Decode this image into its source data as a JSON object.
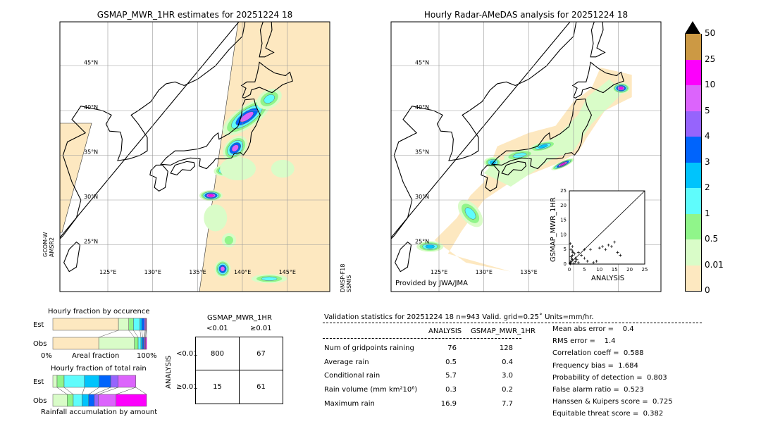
{
  "left_map": {
    "title": "GSMAP_MWR_1HR estimates for 20251224 18",
    "left_sensor": "GCOM-W\nAMSR2",
    "right_sensor": "DMSP-F18\nSSMIS"
  },
  "right_map": {
    "title": "Hourly Radar-AMeDAS analysis for 20251224 18",
    "credit": "Provided by JWA/JMA"
  },
  "lat_labels": [
    "45°N",
    "40°N",
    "35°N",
    "30°N",
    "25°N"
  ],
  "lon_labels": [
    "125°E",
    "130°E",
    "135°E",
    "140°E",
    "145°E"
  ],
  "colorbar": {
    "labels": [
      "50",
      "25",
      "10",
      "5",
      "4",
      "3",
      "2",
      "1",
      "0.5",
      "0.01",
      "0"
    ],
    "colors": [
      "#fde8c0",
      "#d9fcc8",
      "#90f58a",
      "#5ffcfc",
      "#00c4fc",
      "#0064fc",
      "#9664fc",
      "#dc64fc",
      "#fc00fc",
      "#cc9944"
    ],
    "over_color": "#000000"
  },
  "scatter": {
    "xlabel": "ANALYSIS",
    "ylabel": "GSMAP_MWR_1HR",
    "ticks": [
      "0",
      "5",
      "10",
      "15",
      "20",
      "25"
    ],
    "range": [
      0,
      25
    ],
    "points": [
      [
        0.3,
        0.5
      ],
      [
        0.5,
        1
      ],
      [
        0.8,
        2
      ],
      [
        1,
        3
      ],
      [
        1.2,
        4
      ],
      [
        0.5,
        5
      ],
      [
        1,
        6
      ],
      [
        2,
        2
      ],
      [
        2.5,
        1.5
      ],
      [
        3,
        4
      ],
      [
        4,
        3
      ],
      [
        5,
        2
      ],
      [
        5,
        5
      ],
      [
        6,
        1
      ],
      [
        7,
        5
      ],
      [
        8,
        0.5
      ],
      [
        9,
        1
      ],
      [
        10,
        5.5
      ],
      [
        11,
        6
      ],
      [
        12,
        5
      ],
      [
        13,
        6.5
      ],
      [
        14,
        6
      ],
      [
        15,
        7.5
      ],
      [
        16,
        4
      ],
      [
        16.9,
        3
      ],
      [
        0.2,
        0.2
      ],
      [
        0.4,
        0.1
      ],
      [
        1.5,
        0.3
      ],
      [
        2,
        0.8
      ],
      [
        3,
        0.5
      ],
      [
        1,
        1.5
      ],
      [
        0.6,
        2.5
      ],
      [
        1.8,
        3.5
      ],
      [
        0.3,
        7
      ],
      [
        1,
        4.5
      ]
    ]
  },
  "occurrence": {
    "title": "Hourly fraction by occurence",
    "est_label": "Est",
    "obs_label": "Obs",
    "xlabel": "Areal fraction",
    "x0": "0%",
    "x1": "100%",
    "est": [
      0.7,
      0.11,
      0.05,
      0.07,
      0.02,
      0.025,
      0.012,
      0.008,
      0.005
    ],
    "obs": [
      0.49,
      0.38,
      0.04,
      0.03,
      0.018,
      0.013,
      0.01,
      0.008,
      0.011
    ]
  },
  "total_rain": {
    "title": "Hourly fraction of total rain",
    "est_label": "Est",
    "obs_label": "Obs",
    "xlabel": "Rainfall accumulation by amount",
    "est": [
      0.045,
      0.075,
      0.2175,
      0.1575,
      0.1225,
      0.08,
      0.1875,
      0
    ],
    "obs": [
      0.1525,
      0.065,
      0.095,
      0.07,
      0.06,
      0.045,
      0.1875,
      0.325
    ]
  },
  "contingency": {
    "title": "GSMAP_MWR_1HR",
    "col_labels": [
      "<0.01",
      "≥0.01"
    ],
    "row_title": "ANALYSIS",
    "row_labels": [
      "<0.01",
      "≥0.01"
    ],
    "cells": [
      [
        "800",
        "67"
      ],
      [
        "15",
        "61"
      ]
    ]
  },
  "validation": {
    "header": "Validation statistics for 20251224 18  n=943 Valid. grid=0.25˚ Units=mm/hr.",
    "col_headers": [
      "ANALYSIS",
      "GSMAP_MWR_1HR"
    ],
    "rows": [
      {
        "label": "Num of gridpoints raining",
        "a": "76",
        "g": "128"
      },
      {
        "label": "Average rain",
        "a": "0.5",
        "g": "0.4"
      },
      {
        "label": "Conditional rain",
        "a": "5.7",
        "g": "3.0"
      },
      {
        "label": "Rain volume (mm km²10⁶)",
        "a": "0.3",
        "g": "0.2"
      },
      {
        "label": "Maximum rain",
        "a": "16.9",
        "g": "7.7"
      }
    ],
    "scores": [
      "Mean abs error =    0.4",
      "RMS error =    1.4",
      "Correlation coeff =  0.588",
      "Frequency bias =  1.684",
      "Probability of detection =  0.803",
      "False alarm ratio =  0.523",
      "Hanssen & Kuipers score =  0.725",
      "Equitable threat score =  0.382"
    ]
  },
  "chart_data": [
    {
      "type": "scatter",
      "title": "",
      "xlabel": "ANALYSIS",
      "ylabel": "GSMAP_MWR_1HR",
      "xlim": [
        0,
        25
      ],
      "ylim": [
        0,
        25
      ]
    },
    {
      "type": "bar",
      "title": "Hourly fraction by occurence",
      "categories": [
        "Est",
        "Obs"
      ]
    },
    {
      "type": "bar",
      "title": "Hourly fraction of total rain",
      "categories": [
        "Est",
        "Obs"
      ]
    }
  ]
}
